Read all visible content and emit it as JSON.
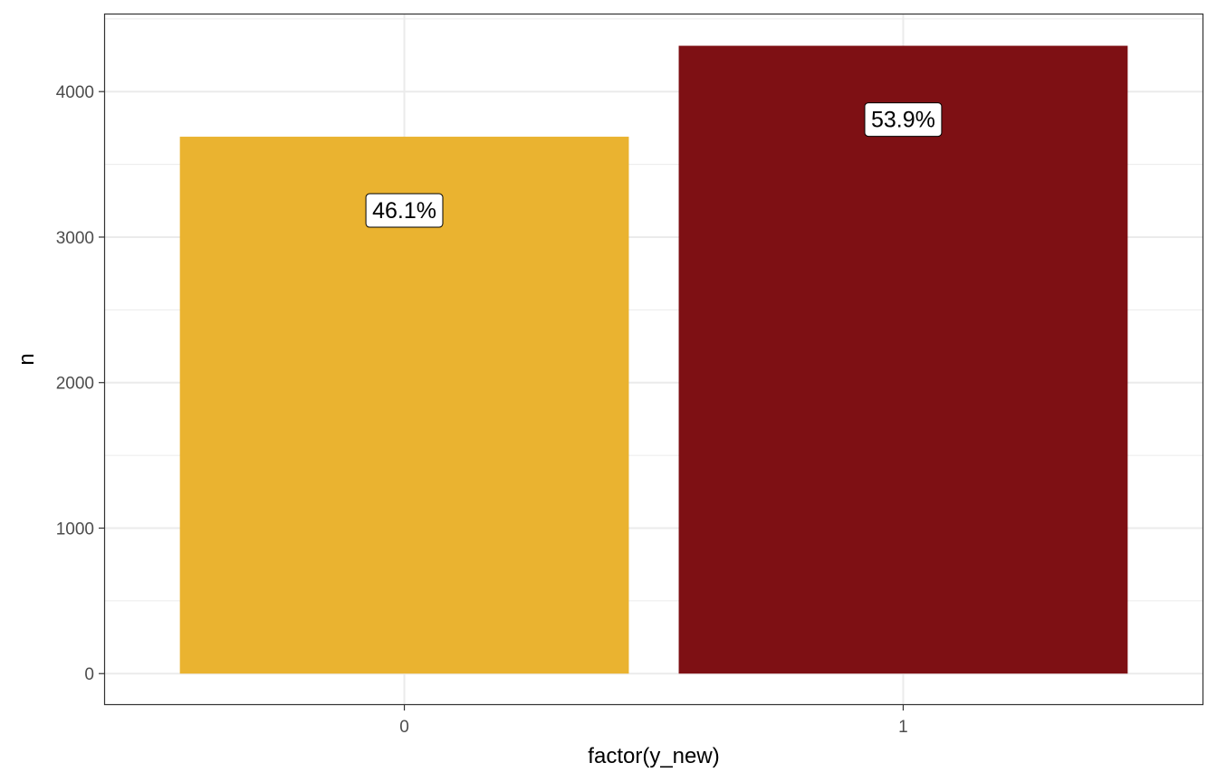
{
  "chart_data": {
    "type": "bar",
    "categories": [
      "0",
      "1"
    ],
    "values": [
      3690,
      4315
    ],
    "labels": [
      "46.1%",
      "53.9%"
    ],
    "colors": [
      "#EAB330",
      "#7E1014"
    ],
    "title": "",
    "xlabel": "factor(y_new)",
    "ylabel": "n",
    "ylim": [
      -210,
      4530
    ],
    "yticks": [
      "0",
      "1000",
      "2000",
      "3000",
      "4000"
    ],
    "grid": true,
    "legend": "none"
  }
}
